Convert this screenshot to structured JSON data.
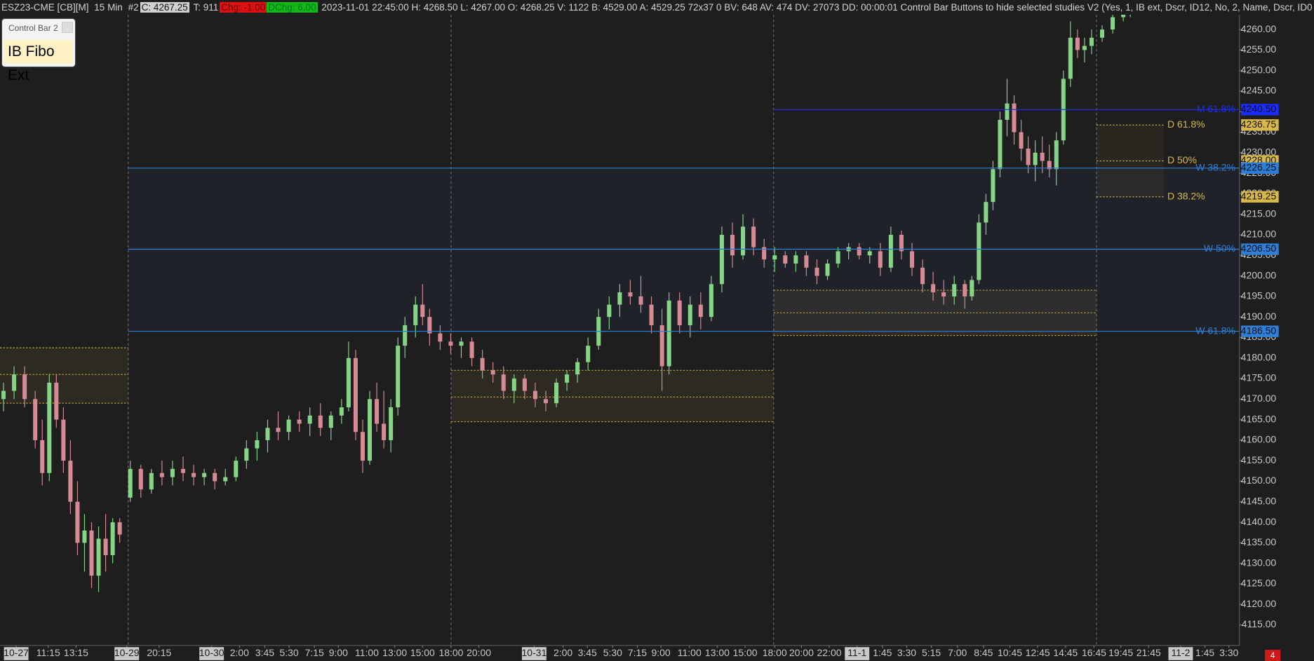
{
  "header": {
    "symbol": "ESZ23-CME [CB][M]",
    "interval": "15 Min",
    "chart_no": "#2",
    "close": "C: 4267.25",
    "trades": "T: 911",
    "change": "Chg: -1.00",
    "day_change": "DChg: 6.00",
    "info": "2023-11-01 22:45:00 H: 4268.50 L: 4267.00 O: 4268.25 V: 1122 B: 4529.00 A: 4529.25 72x37 0 BV: 648 AV: 474 DV: 27073 DD: 00:00:01 Control Bar Buttons to hide selected studies V2   (Yes, 1, IB ext, Dscr, ID12, No, 2, Name, Dscr, ID0"
  },
  "control_bar": {
    "title": "Control Bar 2",
    "button": "IB Fibo Ext"
  },
  "badge": "4",
  "chart_data": {
    "type": "candlestick",
    "up_color": "#86d486",
    "down_color": "#d68b94",
    "xlim": [
      0,
      352
    ],
    "ylim": [
      4110,
      4264
    ],
    "x": [
      1,
      4,
      7,
      10,
      12,
      14,
      16,
      18,
      20,
      22,
      24,
      26,
      28,
      30,
      32,
      34,
      37,
      40,
      43,
      46,
      49,
      52,
      55,
      58,
      61,
      64,
      67,
      70,
      73,
      76,
      79,
      82,
      85,
      88,
      91,
      94,
      97,
      99,
      101,
      103,
      105,
      107,
      109,
      111,
      113,
      115,
      118,
      120,
      122,
      125,
      128,
      131,
      134,
      137,
      140,
      143,
      146,
      149,
      152,
      155,
      158,
      161,
      164,
      167,
      170,
      173,
      176,
      179,
      182,
      185,
      188,
      190,
      193,
      196,
      199,
      202,
      205,
      208,
      211,
      214,
      217,
      220,
      223,
      226,
      229,
      232,
      235,
      238,
      241,
      244,
      247,
      250,
      253,
      256,
      259,
      262,
      265,
      268,
      271,
      274,
      276,
      278,
      280,
      282,
      284,
      286,
      288,
      290,
      292,
      294,
      296,
      298,
      300,
      302,
      304,
      306,
      308,
      310,
      313,
      316,
      319,
      321
    ],
    "ohlc": [
      [
        4170,
        4174,
        4167,
        4172
      ],
      [
        4172,
        4178,
        4170,
        4176
      ],
      [
        4176,
        4178,
        4168,
        4170
      ],
      [
        4170,
        4172,
        4158,
        4160
      ],
      [
        4160,
        4165,
        4149,
        4152
      ],
      [
        4152,
        4176,
        4150,
        4174
      ],
      [
        4174,
        4176,
        4163,
        4165
      ],
      [
        4165,
        4168,
        4152,
        4155
      ],
      [
        4155,
        4160,
        4142,
        4145
      ],
      [
        4145,
        4150,
        4132,
        4135
      ],
      [
        4135,
        4142,
        4128,
        4138
      ],
      [
        4138,
        4140,
        4124,
        4127
      ],
      [
        4127,
        4139,
        4123,
        4136
      ],
      [
        4136,
        4142,
        4128,
        4132
      ],
      [
        4132,
        4141,
        4130,
        4140
      ],
      [
        4140,
        4141,
        4135,
        4137
      ],
      [
        4146,
        4155,
        4145,
        4153
      ],
      [
        4153,
        4154,
        4146,
        4148
      ],
      [
        4148,
        4153,
        4147,
        4152
      ],
      [
        4152,
        4155,
        4149,
        4151
      ],
      [
        4151,
        4155,
        4149,
        4153
      ],
      [
        4153,
        4156,
        4150,
        4152
      ],
      [
        4152,
        4154,
        4149,
        4151
      ],
      [
        4151,
        4153,
        4149,
        4152
      ],
      [
        4152,
        4153,
        4148,
        4150
      ],
      [
        4150,
        4153,
        4149,
        4151
      ],
      [
        4151,
        4156,
        4150,
        4155
      ],
      [
        4155,
        4160,
        4153,
        4158
      ],
      [
        4158,
        4162,
        4155,
        4160
      ],
      [
        4160,
        4165,
        4157,
        4163
      ],
      [
        4163,
        4167,
        4160,
        4162
      ],
      [
        4162,
        4166,
        4160,
        4165
      ],
      [
        4165,
        4167,
        4162,
        4164
      ],
      [
        4164,
        4168,
        4161,
        4166
      ],
      [
        4166,
        4169,
        4161,
        4163
      ],
      [
        4163,
        4167,
        4160,
        4166
      ],
      [
        4166,
        4170,
        4164,
        4168
      ],
      [
        4168,
        4184,
        4167,
        4180
      ],
      [
        4180,
        4182,
        4160,
        4162
      ],
      [
        4162,
        4165,
        4152,
        4155
      ],
      [
        4155,
        4172,
        4154,
        4170
      ],
      [
        4170,
        4174,
        4162,
        4164
      ],
      [
        4164,
        4172,
        4158,
        4160
      ],
      [
        4160,
        4170,
        4157,
        4168
      ],
      [
        4168,
        4185,
        4166,
        4183
      ],
      [
        4183,
        4190,
        4180,
        4188
      ],
      [
        4188,
        4195,
        4185,
        4193
      ],
      [
        4193,
        4198,
        4188,
        4190
      ],
      [
        4190,
        4192,
        4183,
        4186
      ],
      [
        4186,
        4188,
        4182,
        4184
      ],
      [
        4184,
        4186,
        4181,
        4183
      ],
      [
        4183,
        4185,
        4180,
        4184
      ],
      [
        4184,
        4185,
        4178,
        4180
      ],
      [
        4180,
        4182,
        4175,
        4177
      ],
      [
        4177,
        4179,
        4174,
        4176
      ],
      [
        4176,
        4178,
        4170,
        4172
      ],
      [
        4172,
        4176,
        4169,
        4175
      ],
      [
        4175,
        4176,
        4170,
        4172
      ],
      [
        4172,
        4174,
        4168,
        4170
      ],
      [
        4170,
        4172,
        4167,
        4169
      ],
      [
        4169,
        4175,
        4168,
        4174
      ],
      [
        4174,
        4177,
        4172,
        4176
      ],
      [
        4176,
        4180,
        4174,
        4179
      ],
      [
        4179,
        4185,
        4177,
        4183
      ],
      [
        4183,
        4192,
        4182,
        4190
      ],
      [
        4190,
        4195,
        4187,
        4193
      ],
      [
        4193,
        4198,
        4190,
        4196
      ],
      [
        4196,
        4199,
        4193,
        4195
      ],
      [
        4195,
        4200,
        4191,
        4193
      ],
      [
        4193,
        4195,
        4186,
        4188
      ],
      [
        4188,
        4192,
        4172,
        4178
      ],
      [
        4178,
        4196,
        4176,
        4194
      ],
      [
        4194,
        4196,
        4186,
        4188
      ],
      [
        4188,
        4195,
        4185,
        4193
      ],
      [
        4193,
        4196,
        4187,
        4190
      ],
      [
        4190,
        4200,
        4189,
        4198
      ],
      [
        4198,
        4212,
        4196,
        4210
      ],
      [
        4210,
        4213,
        4202,
        4205
      ],
      [
        4205,
        4215,
        4204,
        4212
      ],
      [
        4212,
        4214,
        4205,
        4207
      ],
      [
        4207,
        4209,
        4202,
        4204
      ],
      [
        4204,
        4207,
        4201,
        4205
      ],
      [
        4205,
        4206,
        4202,
        4203
      ],
      [
        4203,
        4206,
        4201,
        4205
      ],
      [
        4205,
        4206,
        4200,
        4202
      ],
      [
        4202,
        4204,
        4198,
        4200
      ],
      [
        4200,
        4204,
        4199,
        4203
      ],
      [
        4203,
        4207,
        4202,
        4206
      ],
      [
        4206,
        4208,
        4204,
        4207
      ],
      [
        4207,
        4208,
        4204,
        4205
      ],
      [
        4205,
        4207,
        4203,
        4206
      ],
      [
        4206,
        4208,
        4200,
        4202
      ],
      [
        4202,
        4212,
        4201,
        4210
      ],
      [
        4210,
        4211,
        4204,
        4206
      ],
      [
        4206,
        4208,
        4200,
        4202
      ],
      [
        4202,
        4204,
        4196,
        4198
      ],
      [
        4198,
        4201,
        4194,
        4196
      ],
      [
        4196,
        4199,
        4193,
        4195
      ],
      [
        4195,
        4200,
        4193,
        4198
      ],
      [
        4198,
        4199,
        4192,
        4195
      ],
      [
        4195,
        4200,
        4194,
        4199
      ],
      [
        4199,
        4215,
        4198,
        4213
      ],
      [
        4213,
        4220,
        4210,
        4218
      ],
      [
        4218,
        4228,
        4216,
        4226
      ],
      [
        4226,
        4240,
        4224,
        4238
      ],
      [
        4238,
        4248,
        4234,
        4242
      ],
      [
        4242,
        4244,
        4232,
        4235
      ],
      [
        4235,
        4238,
        4228,
        4231
      ],
      [
        4231,
        4234,
        4225,
        4227
      ],
      [
        4227,
        4233,
        4223,
        4230
      ],
      [
        4230,
        4234,
        4225,
        4228
      ],
      [
        4228,
        4232,
        4224,
        4226
      ],
      [
        4226,
        4235,
        4222,
        4233
      ],
      [
        4233,
        4250,
        4232,
        4248
      ],
      [
        4248,
        4262,
        4246,
        4258
      ],
      [
        4258,
        4260,
        4253,
        4255
      ],
      [
        4255,
        4258,
        4252,
        4256
      ],
      [
        4256,
        4260,
        4254,
        4258
      ],
      [
        4258,
        4261,
        4257,
        4260
      ],
      [
        4260,
        4264,
        4259,
        4263
      ],
      [
        4263,
        4265,
        4262,
        4264
      ],
      [
        4264,
        4265,
        4263,
        4264
      ]
    ],
    "session_breaks": [
      36.4,
      128.1,
      219.7,
      311.4
    ],
    "zones": [
      {
        "from": 0,
        "to": 36.4,
        "top": 4182.5,
        "mid": 4176,
        "bottom": 4169
      },
      {
        "from": 128.1,
        "to": 219.7,
        "top": 4177,
        "mid": 4170.5,
        "bottom": 4164.5
      },
      {
        "from": 219.7,
        "to": 311.4,
        "top": 4196.5,
        "mid": 4191,
        "bottom": 4185.5
      }
    ],
    "levels": [
      {
        "name": "D 61.8%",
        "value": 4236.75,
        "value_label": "4236.75",
        "color": "#d9b84a",
        "from": 311.4,
        "to": 330.6
      },
      {
        "name": "D 50%",
        "value": 4228,
        "value_label": "4228.00",
        "color": "#d9b84a",
        "from": 311.4,
        "to": 330.6
      },
      {
        "name": "D 38.2%",
        "value": 4219.25,
        "value_label": "4219.25",
        "color": "#d9b84a",
        "from": 311.4,
        "to": 330.6
      },
      {
        "name": "M 61.8%",
        "value": 4240.5,
        "value_label": "4240.50",
        "color": "#1a2cff",
        "from": 219.7,
        "to": 352
      },
      {
        "name": "W 38.2%",
        "value": 4226.25,
        "value_label": "4226.25",
        "color": "#2f7fd9",
        "from": 36.4,
        "to": 352
      },
      {
        "name": "W 50%",
        "value": 4206.5,
        "value_label": "4206.50",
        "color": "#2f7fd9",
        "from": 36.4,
        "to": 352
      },
      {
        "name": "W 61.8%",
        "value": 4186.5,
        "value_label": "4186.50",
        "color": "#2f7fd9",
        "from": 36.4,
        "to": 352
      }
    ],
    "yticks": [
      {
        "value": 4115,
        "label": "4115.00"
      },
      {
        "value": 4120,
        "label": "4120.00"
      },
      {
        "value": 4125,
        "label": "4125.00"
      },
      {
        "value": 4130,
        "label": "4130.00"
      },
      {
        "value": 4135,
        "label": "4135.00"
      },
      {
        "value": 4140,
        "label": "4140.00"
      },
      {
        "value": 4145,
        "label": "4145.00"
      },
      {
        "value": 4150,
        "label": "4150.00"
      },
      {
        "value": 4155,
        "label": "4155.00"
      },
      {
        "value": 4160,
        "label": "4160.00"
      },
      {
        "value": 4165,
        "label": "4165.00"
      },
      {
        "value": 4170,
        "label": "4170.00"
      },
      {
        "value": 4175,
        "label": "4175.00"
      },
      {
        "value": 4180,
        "label": "4180.00"
      },
      {
        "value": 4185,
        "label": "4185.00"
      },
      {
        "value": 4190,
        "label": "4190.00"
      },
      {
        "value": 4195,
        "label": "4195.00"
      },
      {
        "value": 4200,
        "label": "4200.00"
      },
      {
        "value": 4205,
        "label": "4205.00"
      },
      {
        "value": 4210,
        "label": "4210.00"
      },
      {
        "value": 4215,
        "label": "4215.00"
      },
      {
        "value": 4220,
        "label": "4220.00"
      },
      {
        "value": 4225,
        "label": "4225.00"
      },
      {
        "value": 4230,
        "label": "4230.00"
      },
      {
        "value": 4235,
        "label": "4235.00"
      },
      {
        "value": 4240,
        "label": "4240.00"
      },
      {
        "value": 4245,
        "label": "4245.00"
      },
      {
        "value": 4250,
        "label": "4250.00"
      },
      {
        "value": 4255,
        "label": "4255.00"
      },
      {
        "value": 4260,
        "label": "4260.00"
      }
    ],
    "xticks": [
      {
        "value": 4.6,
        "label": "10-27"
      },
      {
        "value": 13.7,
        "label": "11:15"
      },
      {
        "value": 21.6,
        "label": "13:15"
      },
      {
        "value": 36,
        "label": "10-29"
      },
      {
        "value": 45.2,
        "label": "20:15"
      },
      {
        "value": 60.1,
        "label": "10-30"
      },
      {
        "value": 68,
        "label": "2:00"
      },
      {
        "value": 75.2,
        "label": "3:45"
      },
      {
        "value": 82.1,
        "label": "5:30"
      },
      {
        "value": 89.3,
        "label": "7:15"
      },
      {
        "value": 96.1,
        "label": "9:00"
      },
      {
        "value": 104.2,
        "label": "11:00"
      },
      {
        "value": 112.1,
        "label": "13:00"
      },
      {
        "value": 120,
        "label": "15:00"
      },
      {
        "value": 128.1,
        "label": "18:00"
      },
      {
        "value": 136,
        "label": "20:00"
      },
      {
        "value": 151.7,
        "label": "10-31"
      },
      {
        "value": 159.9,
        "label": "2:00"
      },
      {
        "value": 166.8,
        "label": "3:45"
      },
      {
        "value": 174,
        "label": "5:30"
      },
      {
        "value": 181,
        "label": "7:15"
      },
      {
        "value": 187.7,
        "label": "9:00"
      },
      {
        "value": 195.8,
        "label": "11:00"
      },
      {
        "value": 203.7,
        "label": "13:00"
      },
      {
        "value": 211.6,
        "label": "15:00"
      },
      {
        "value": 220,
        "label": "18:00"
      },
      {
        "value": 227.6,
        "label": "20:00"
      },
      {
        "value": 235.5,
        "label": "22:00"
      },
      {
        "value": 243.4,
        "label": "11-1"
      },
      {
        "value": 250.6,
        "label": "1:45"
      },
      {
        "value": 257.5,
        "label": "3:30"
      },
      {
        "value": 264.5,
        "label": "5:15"
      },
      {
        "value": 271.9,
        "label": "7:00"
      },
      {
        "value": 279.3,
        "label": "8:45"
      },
      {
        "value": 286.8,
        "label": "10:45"
      },
      {
        "value": 294.7,
        "label": "12:45"
      },
      {
        "value": 302.6,
        "label": "14:45"
      },
      {
        "value": 310.7,
        "label": "16:45"
      },
      {
        "value": 318.3,
        "label": "19:45"
      },
      {
        "value": 326.2,
        "label": "21:45"
      },
      {
        "value": 335.3,
        "label": "11-2"
      },
      {
        "value": 342.2,
        "label": "1:45"
      },
      {
        "value": 349,
        "label": "3:30"
      }
    ]
  }
}
